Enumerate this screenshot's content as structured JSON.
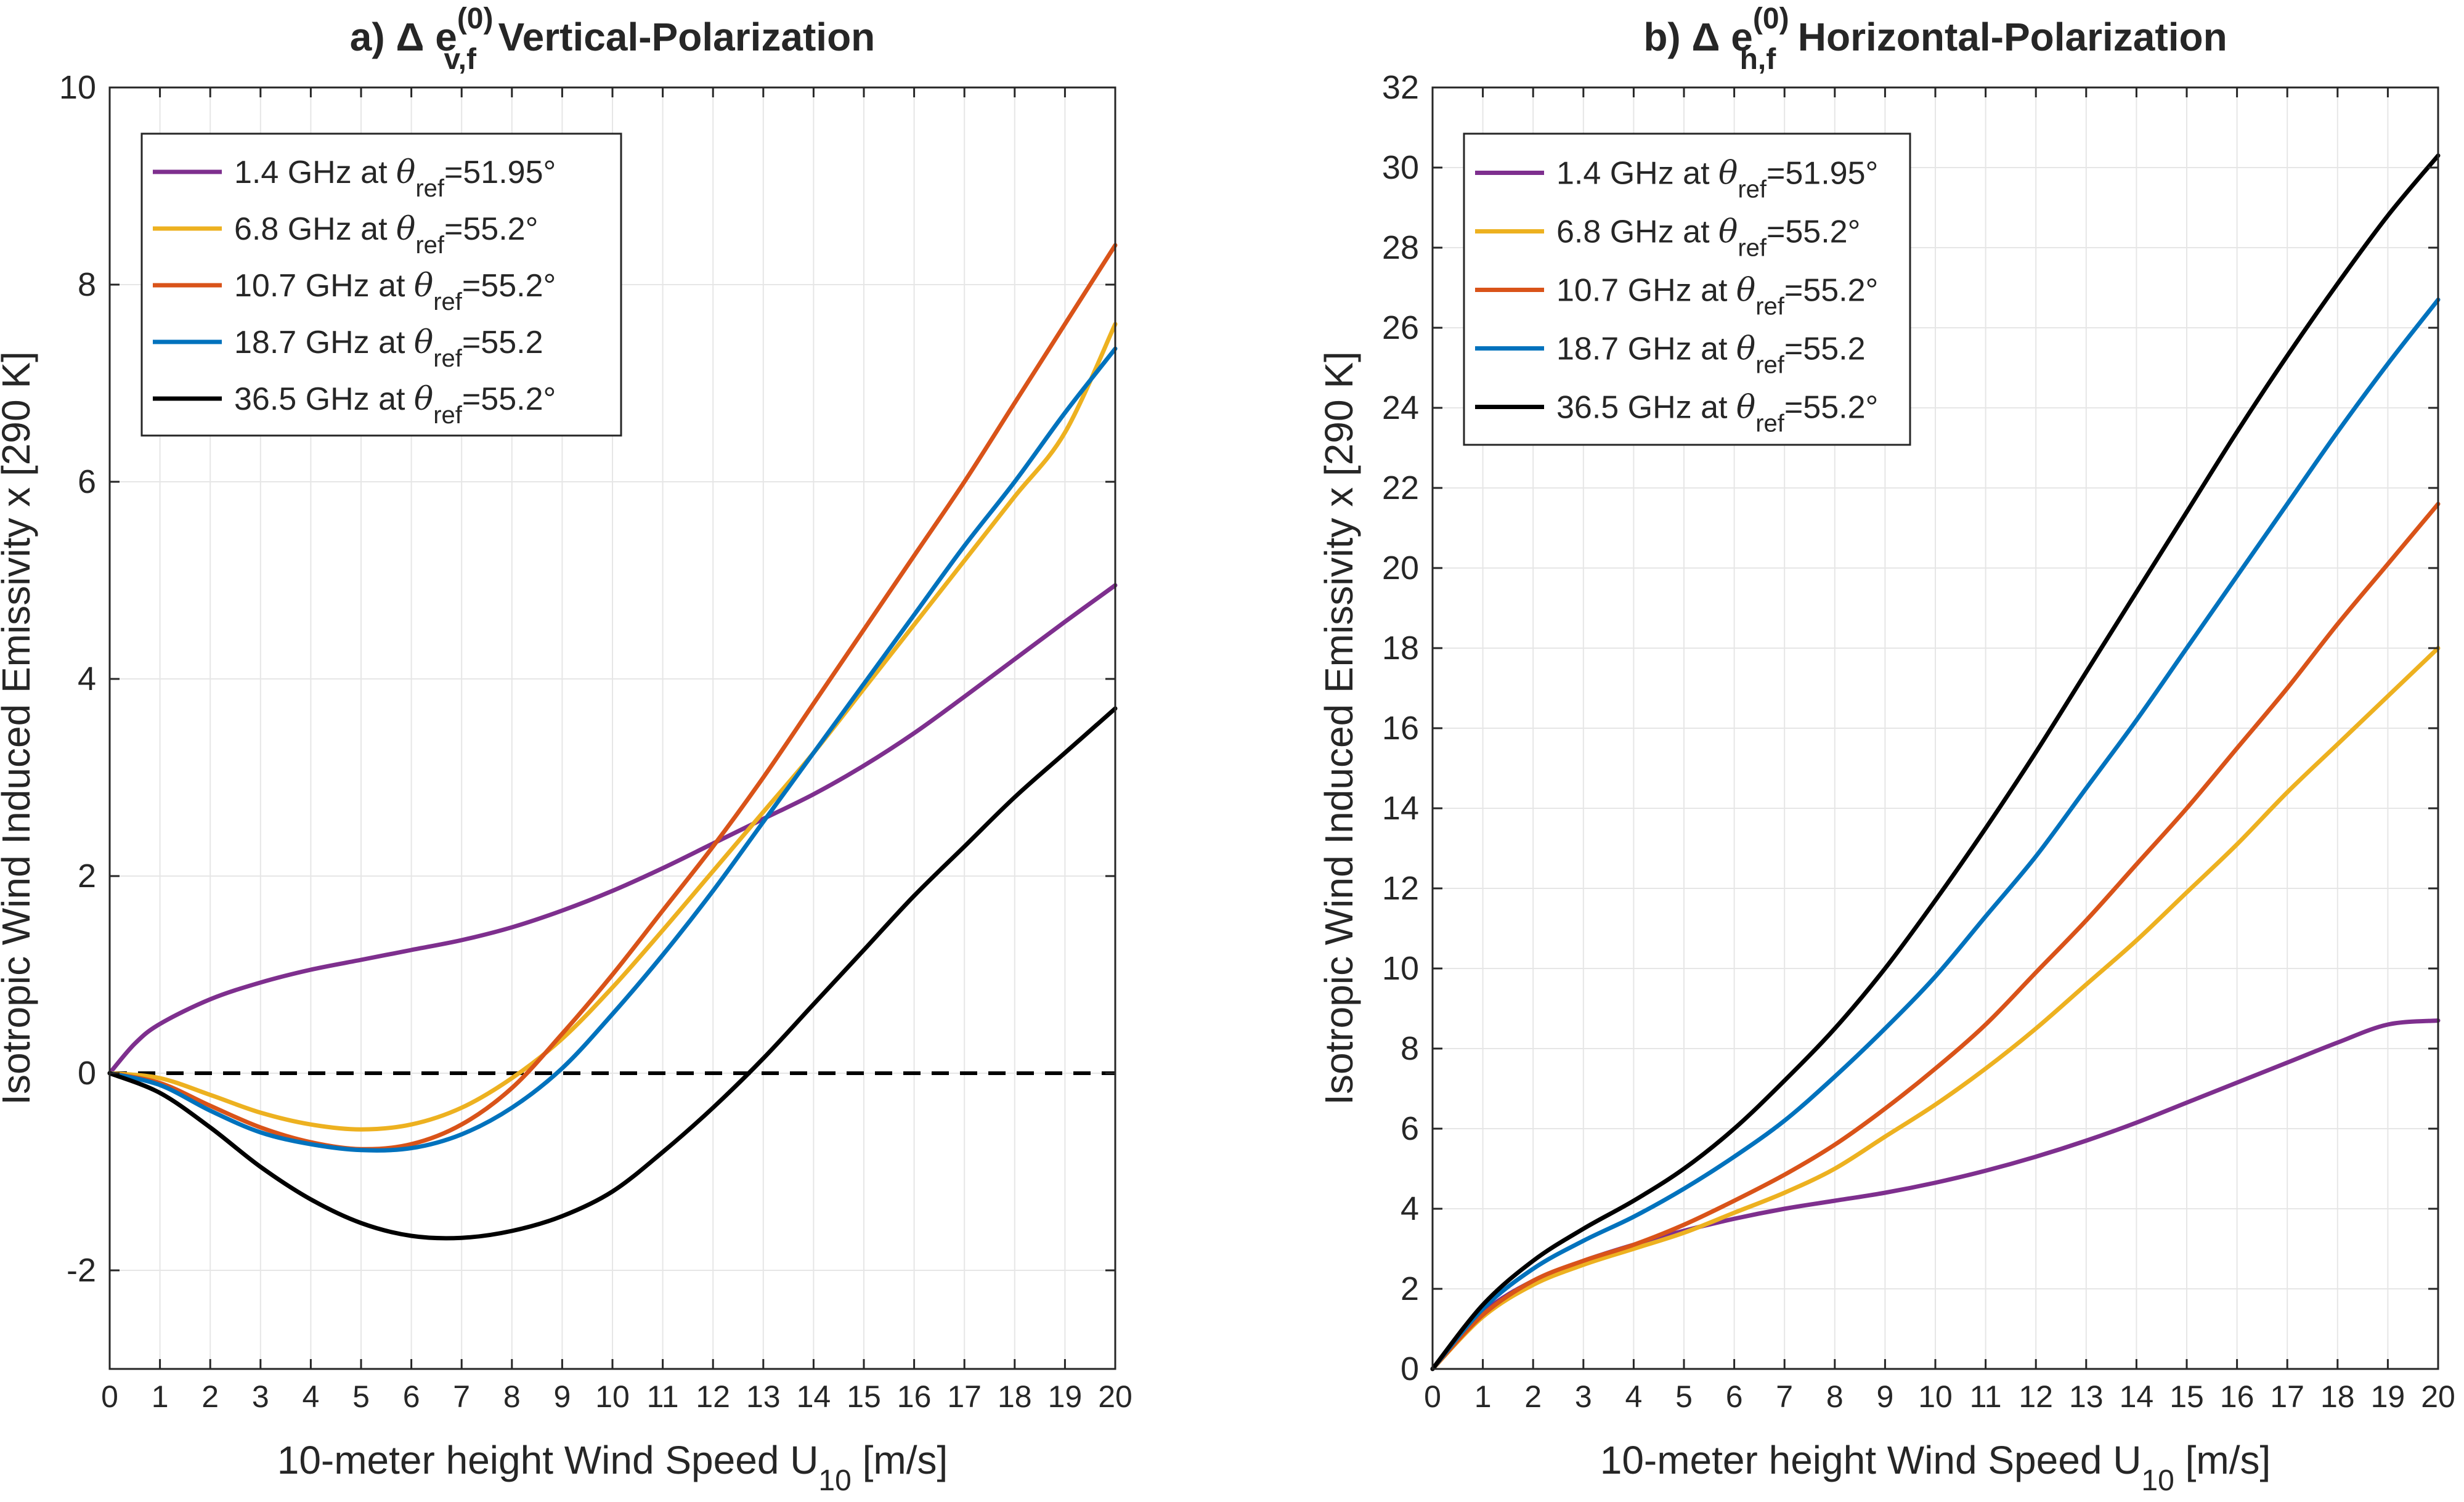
{
  "chart_data": [
    {
      "type": "line",
      "panel": "a",
      "title": {
        "prefix": "a) Δ e",
        "superscript": "(0)",
        "subscript": "v,f",
        "suffix": "Vertical-Polarization"
      },
      "xlabel": {
        "text": "10-meter height Wind Speed U",
        "sub": "10",
        "unit": "[m/s]"
      },
      "ylabel": "Isotropic Wind Induced Emissivity x [290 K]",
      "xlim": [
        0,
        20
      ],
      "ylim": [
        -3,
        10
      ],
      "xticks": [
        0,
        1,
        2,
        3,
        4,
        5,
        6,
        7,
        8,
        9,
        10,
        11,
        12,
        13,
        14,
        15,
        16,
        17,
        18,
        19,
        20
      ],
      "yticks": [
        -2,
        0,
        2,
        4,
        6,
        8,
        10
      ],
      "grid": true,
      "legend_position": "top-left",
      "reference_line": {
        "y": 0,
        "style": "dashed",
        "color": "#000000"
      },
      "series": [
        {
          "legend": {
            "pre": "1.4 GHz at ",
            "theta": "θ",
            "sub": "ref",
            "post": "=51.95°"
          },
          "color": "#7E2F8E",
          "x": [
            0,
            0.5,
            1,
            2,
            3,
            4,
            5,
            6,
            7,
            8,
            9,
            10,
            11,
            12,
            13,
            14,
            15,
            16,
            17,
            18,
            19,
            20
          ],
          "y": [
            0,
            0.3,
            0.5,
            0.75,
            0.92,
            1.05,
            1.15,
            1.25,
            1.35,
            1.48,
            1.65,
            1.85,
            2.08,
            2.33,
            2.58,
            2.83,
            3.12,
            3.45,
            3.82,
            4.2,
            4.58,
            4.95
          ]
        },
        {
          "legend": {
            "pre": "6.8 GHz at ",
            "theta": "θ",
            "sub": "ref",
            "post": "=55.2°"
          },
          "color": "#EDB120",
          "x": [
            0,
            1,
            2,
            3,
            4,
            5,
            6,
            7,
            8,
            9,
            10,
            11,
            12,
            13,
            14,
            15,
            16,
            17,
            18,
            19,
            20
          ],
          "y": [
            0,
            -0.05,
            -0.22,
            -0.4,
            -0.52,
            -0.57,
            -0.52,
            -0.35,
            -0.05,
            0.35,
            0.87,
            1.45,
            2.05,
            2.65,
            3.25,
            3.9,
            4.55,
            5.2,
            5.85,
            6.5,
            7.6
          ]
        },
        {
          "legend": {
            "pre": "10.7 GHz at ",
            "theta": "θ",
            "sub": "ref",
            "post": "=55.2°"
          },
          "color": "#D95319",
          "x": [
            0,
            1,
            2,
            3,
            4,
            5,
            6,
            7,
            8,
            9,
            10,
            11,
            12,
            13,
            14,
            15,
            16,
            17,
            18,
            19,
            20
          ],
          "y": [
            0,
            -0.1,
            -0.33,
            -0.55,
            -0.7,
            -0.77,
            -0.72,
            -0.52,
            -0.15,
            0.4,
            1.0,
            1.65,
            2.3,
            3.0,
            3.75,
            4.5,
            5.25,
            6.0,
            6.8,
            7.6,
            8.4
          ]
        },
        {
          "legend": {
            "pre": "18.7 GHz at ",
            "theta": "θ",
            "sub": "ref",
            "post": "=55.2"
          },
          "color": "#0072BD",
          "x": [
            0,
            1,
            2,
            3,
            4,
            5,
            6,
            7,
            8,
            9,
            10,
            11,
            12,
            13,
            14,
            15,
            16,
            17,
            18,
            19,
            20
          ],
          "y": [
            0,
            -0.12,
            -0.38,
            -0.6,
            -0.72,
            -0.78,
            -0.76,
            -0.62,
            -0.35,
            0.05,
            0.6,
            1.2,
            1.85,
            2.55,
            3.25,
            3.95,
            4.65,
            5.35,
            6.0,
            6.7,
            7.35
          ]
        },
        {
          "legend": {
            "pre": "36.5 GHz at ",
            "theta": "θ",
            "sub": "ref",
            "post": "=55.2°"
          },
          "color": "#000000",
          "x": [
            0,
            1,
            2,
            3,
            4,
            5,
            6,
            7,
            8,
            9,
            10,
            11,
            12,
            13,
            14,
            15,
            16,
            17,
            18,
            19,
            20
          ],
          "y": [
            0,
            -0.2,
            -0.55,
            -0.95,
            -1.28,
            -1.52,
            -1.65,
            -1.67,
            -1.6,
            -1.45,
            -1.2,
            -0.8,
            -0.35,
            0.15,
            0.7,
            1.25,
            1.8,
            2.3,
            2.8,
            3.25,
            3.7
          ]
        }
      ]
    },
    {
      "type": "line",
      "panel": "b",
      "title": {
        "prefix": "b) Δ e",
        "superscript": "(0)",
        "subscript": "h,f",
        "suffix": "Horizontal-Polarization"
      },
      "xlabel": {
        "text": "10-meter height Wind Speed U",
        "sub": "10",
        "unit": "[m/s]"
      },
      "ylabel": "Isotropic Wind Induced Emissivity  x [290 K]",
      "xlim": [
        0,
        20
      ],
      "ylim": [
        0,
        32
      ],
      "xticks": [
        0,
        1,
        2,
        3,
        4,
        5,
        6,
        7,
        8,
        9,
        10,
        11,
        12,
        13,
        14,
        15,
        16,
        17,
        18,
        19,
        20
      ],
      "yticks": [
        0,
        2,
        4,
        6,
        8,
        10,
        12,
        14,
        16,
        18,
        20,
        22,
        24,
        26,
        28,
        30,
        32
      ],
      "grid": true,
      "legend_position": "top-left",
      "series": [
        {
          "legend": {
            "pre": "1.4 GHz at ",
            "theta": "θ",
            "sub": "ref",
            "post": "=51.95°"
          },
          "color": "#7E2F8E",
          "x": [
            0,
            1,
            2,
            3,
            4,
            5,
            6,
            7,
            8,
            9,
            10,
            11,
            12,
            13,
            14,
            15,
            16,
            17,
            18,
            19,
            20
          ],
          "y": [
            0,
            1.4,
            2.2,
            2.7,
            3.1,
            3.45,
            3.75,
            4.0,
            4.2,
            4.4,
            4.65,
            4.95,
            5.3,
            5.7,
            6.15,
            6.65,
            7.15,
            7.65,
            8.15,
            8.6,
            8.7
          ]
        },
        {
          "legend": {
            "pre": "6.8 GHz at ",
            "theta": "θ",
            "sub": "ref",
            "post": "=55.2°"
          },
          "color": "#EDB120",
          "x": [
            0,
            1,
            2,
            3,
            4,
            5,
            6,
            7,
            8,
            9,
            10,
            11,
            12,
            13,
            14,
            15,
            16,
            17,
            18,
            19,
            20
          ],
          "y": [
            0,
            1.3,
            2.1,
            2.6,
            3.0,
            3.4,
            3.9,
            4.4,
            5.0,
            5.8,
            6.6,
            7.5,
            8.5,
            9.6,
            10.7,
            11.9,
            13.1,
            14.4,
            15.6,
            16.8,
            18.0
          ]
        },
        {
          "legend": {
            "pre": "10.7 GHz at ",
            "theta": "θ",
            "sub": "ref",
            "post": "=55.2°"
          },
          "color": "#D95319",
          "x": [
            0,
            1,
            2,
            3,
            4,
            5,
            6,
            7,
            8,
            9,
            10,
            11,
            12,
            13,
            14,
            15,
            16,
            17,
            18,
            19,
            20
          ],
          "y": [
            0,
            1.35,
            2.2,
            2.7,
            3.1,
            3.6,
            4.2,
            4.85,
            5.6,
            6.5,
            7.5,
            8.6,
            9.9,
            11.2,
            12.6,
            14.0,
            15.5,
            17.0,
            18.6,
            20.1,
            21.6
          ]
        },
        {
          "legend": {
            "pre": "18.7 GHz at ",
            "theta": "θ",
            "sub": "ref",
            "post": "=55.2"
          },
          "color": "#0072BD",
          "x": [
            0,
            1,
            2,
            3,
            4,
            5,
            6,
            7,
            8,
            9,
            10,
            11,
            12,
            13,
            14,
            15,
            16,
            17,
            18,
            19,
            20
          ],
          "y": [
            0,
            1.5,
            2.5,
            3.2,
            3.8,
            4.5,
            5.3,
            6.2,
            7.3,
            8.5,
            9.8,
            11.3,
            12.8,
            14.5,
            16.2,
            18.0,
            19.8,
            21.6,
            23.4,
            25.1,
            26.7
          ]
        },
        {
          "legend": {
            "pre": "36.5 GHz at ",
            "theta": "θ",
            "sub": "ref",
            "post": "=55.2°"
          },
          "color": "#000000",
          "x": [
            0,
            1,
            2,
            3,
            4,
            5,
            6,
            7,
            8,
            9,
            10,
            11,
            12,
            13,
            14,
            15,
            16,
            17,
            18,
            19,
            20
          ],
          "y": [
            0,
            1.6,
            2.7,
            3.5,
            4.2,
            5.0,
            6.0,
            7.2,
            8.5,
            10.0,
            11.7,
            13.5,
            15.4,
            17.4,
            19.4,
            21.4,
            23.4,
            25.3,
            27.1,
            28.8,
            30.3
          ]
        }
      ]
    }
  ]
}
